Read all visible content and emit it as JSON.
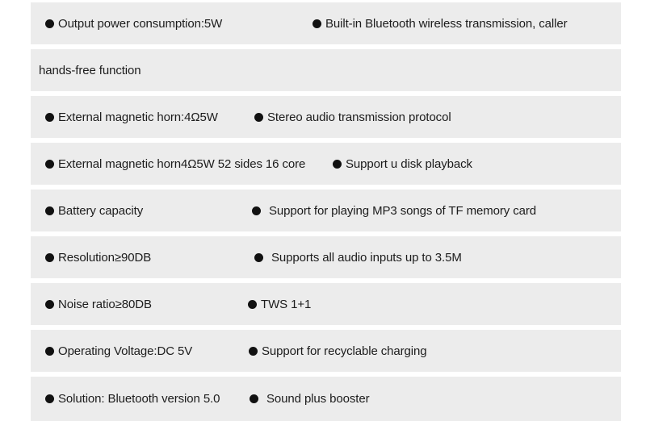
{
  "theme": {
    "background_color": "#ffffff",
    "band_color": "#ececec",
    "text_color": "#1c1c1c",
    "bullet_color": "#111111"
  },
  "specs": {
    "rows": [
      {
        "left": "Output power consumption:5W",
        "right": "Built-in Bluetooth wireless transmission, caller"
      },
      {
        "left": "hands-free function",
        "right": ""
      },
      {
        "left": "External magnetic horn:4Ω5W",
        "right": "Stereo audio transmission protocol"
      },
      {
        "left": "External magnetic horn4Ω5W 52 sides 16 core",
        "right": "Support u disk playback"
      },
      {
        "left": "Battery capacity",
        "right": "Support for playing MP3 songs of TF memory card"
      },
      {
        "left": "Resolution≥90DB",
        "right": "Supports all audio inputs up to 3.5M"
      },
      {
        "left": "Noise ratio≥80DB",
        "right": "TWS 1+1"
      },
      {
        "left": "Operating Voltage:DC 5V",
        "right": "Support for recyclable charging"
      },
      {
        "left": "Solution: Bluetooth version 5.0",
        "right": "Sound plus booster"
      }
    ]
  }
}
